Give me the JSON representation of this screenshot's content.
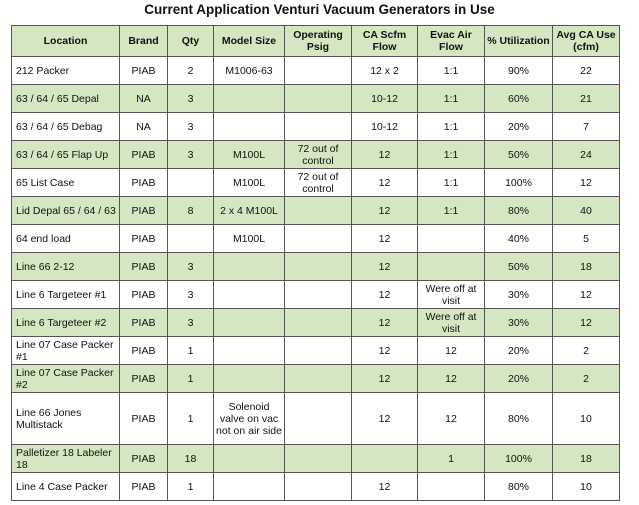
{
  "title": "Current Application Venturi Vacuum Generators in Use",
  "columns": [
    "Location",
    "Brand",
    "Qty",
    "Model Size",
    "Operating Psig",
    "CA Scfm Flow",
    "Evac Air Flow",
    "% Utilization",
    "Avg CA Use (cfm)"
  ],
  "shade_color": "#d5e6c2",
  "rows": [
    {
      "location": "212 Packer",
      "brand": "PIAB",
      "qty": "2",
      "model": "M1006-63",
      "psig": "",
      "scfm": "12 x 2",
      "evac": "1:1",
      "util": "90%",
      "avg": "22"
    },
    {
      "location": "63 / 64 / 65 Depal",
      "brand": "NA",
      "qty": "3",
      "model": "",
      "psig": "",
      "scfm": "10-12",
      "evac": "1:1",
      "util": "60%",
      "avg": "21"
    },
    {
      "location": "63 / 64 / 65 Debag",
      "brand": "NA",
      "qty": "3",
      "model": "",
      "psig": "",
      "scfm": "10-12",
      "evac": "1:1",
      "util": "20%",
      "avg": "7"
    },
    {
      "location": "63 / 64 / 65 Flap Up",
      "brand": "PIAB",
      "qty": "3",
      "model": "M100L",
      "psig": "72 out of control",
      "scfm": "12",
      "evac": "1:1",
      "util": "50%",
      "avg": "24"
    },
    {
      "location": "65 List Case",
      "brand": "PIAB",
      "qty": "",
      "model": "M100L",
      "psig": "72 out of control",
      "scfm": "12",
      "evac": "1:1",
      "util": "100%",
      "avg": "12"
    },
    {
      "location": "Lid Depal 65 / 64 / 63",
      "brand": "PIAB",
      "qty": "8",
      "model": "2 x 4 M100L",
      "psig": "",
      "scfm": "12",
      "evac": "1:1",
      "util": "80%",
      "avg": "40"
    },
    {
      "location": "64 end load",
      "brand": "PIAB",
      "qty": "",
      "model": "M100L",
      "psig": "",
      "scfm": "12",
      "evac": "",
      "util": "40%",
      "avg": "5"
    },
    {
      "location": "Line 66 2-12",
      "brand": "PIAB",
      "qty": "3",
      "model": "",
      "psig": "",
      "scfm": "12",
      "evac": "",
      "util": "50%",
      "avg": "18"
    },
    {
      "location": "Line 6 Targeteer #1",
      "brand": "PIAB",
      "qty": "3",
      "model": "",
      "psig": "",
      "scfm": "12",
      "evac": "Were off at visit",
      "util": "30%",
      "avg": "12"
    },
    {
      "location": "Line 6 Targeteer #2",
      "brand": "PIAB",
      "qty": "3",
      "model": "",
      "psig": "",
      "scfm": "12",
      "evac": "Were off at visit",
      "util": "30%",
      "avg": "12"
    },
    {
      "location": "Line 07 Case Packer #1",
      "brand": "PIAB",
      "qty": "1",
      "model": "",
      "psig": "",
      "scfm": "12",
      "evac": "12",
      "util": "20%",
      "avg": "2"
    },
    {
      "location": "Line 07 Case Packer #2",
      "brand": "PIAB",
      "qty": "1",
      "model": "",
      "psig": "",
      "scfm": "12",
      "evac": "12",
      "util": "20%",
      "avg": "2"
    },
    {
      "location": "Line 66 Jones Multistack",
      "brand": "PIAB",
      "qty": "1",
      "model": "Solenoid valve on vac not on air side",
      "psig": "",
      "scfm": "12",
      "evac": "12",
      "util": "80%",
      "avg": "10"
    },
    {
      "location": "Palletizer 18 Labeler 18",
      "brand": "PIAB",
      "qty": "18",
      "model": "",
      "psig": "",
      "scfm": "",
      "evac": "1",
      "util": "100%",
      "avg": "18"
    },
    {
      "location": "Line 4 Case Packer",
      "brand": "PIAB",
      "qty": "1",
      "model": "",
      "psig": "",
      "scfm": "12",
      "evac": "",
      "util": "80%",
      "avg": "10"
    }
  ]
}
